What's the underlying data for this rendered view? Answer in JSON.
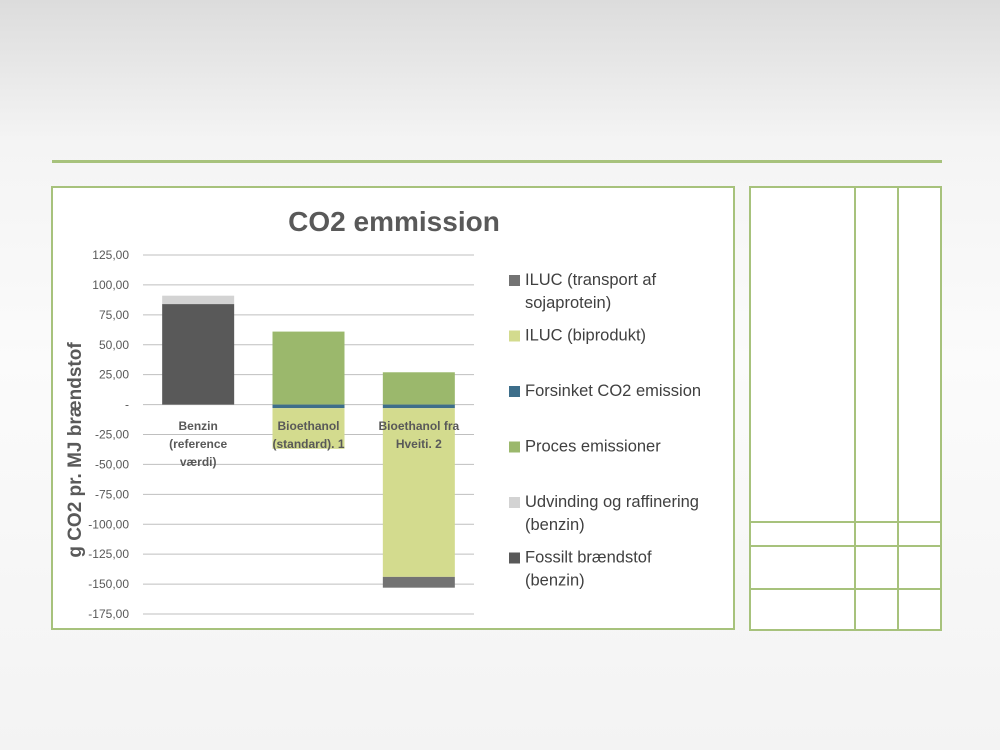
{
  "chart_data": {
    "type": "bar",
    "stacked": true,
    "title": "CO2 emmission",
    "ylabel": "g CO2 pr. MJ brændstof",
    "xlabel": "",
    "categories": [
      "Benzin (reference værdi)",
      "Bioethanol (standard). 1",
      "Bioethanol fra Hveiti. 2"
    ],
    "category_label_lines": [
      [
        "Benzin",
        "(reference",
        "værdi)"
      ],
      [
        "Bioethanol",
        "(standard). 1"
      ],
      [
        "Bioethanol fra",
        "Hveiti. 2"
      ]
    ],
    "ylim": [
      -175,
      125
    ],
    "ytick_values": [
      125,
      100,
      75,
      50,
      25,
      0,
      -25,
      -50,
      -75,
      -100,
      -125,
      -150,
      -175
    ],
    "ytick_labels": [
      "125,00",
      "100,00",
      "75,00",
      "50,00",
      "25,00",
      "-",
      "-25,00",
      "-50,00",
      "-75,00",
      "-100,00",
      "-125,00",
      "-150,00",
      "-175,00"
    ],
    "grid": true,
    "legend_position": "right",
    "series": [
      {
        "name": "ILUC (transport af sojaprotein)",
        "legend_lines": [
          "ILUC (transport af",
          "sojaprotein)"
        ],
        "color": "#737373",
        "values": [
          0,
          0,
          -9
        ]
      },
      {
        "name": "ILUC (biprodukt)",
        "legend_lines": [
          "ILUC (biprodukt)"
        ],
        "color": "#d3db8e",
        "values": [
          0,
          -34,
          -141
        ]
      },
      {
        "name": "Forsinket CO2 emission",
        "legend_lines": [
          "Forsinket CO2 emission"
        ],
        "color": "#3d6e8a",
        "values": [
          0,
          -3,
          -3
        ]
      },
      {
        "name": "Proces emissioner",
        "legend_lines": [
          "Proces emissioner"
        ],
        "color": "#9bb86c",
        "values": [
          0,
          61,
          27
        ]
      },
      {
        "name": "Udvinding og raffinering (benzin)",
        "legend_lines": [
          "Udvinding og raffinering",
          "(benzin)"
        ],
        "color": "#d3d3d3",
        "values": [
          7,
          0,
          0
        ]
      },
      {
        "name": "Fossilt brændstof (benzin)",
        "legend_lines": [
          "Fossilt brændstof",
          "(benzin)"
        ],
        "color": "#595959",
        "values": [
          84,
          0,
          0
        ]
      }
    ],
    "stack_order": [
      "Fossilt brændstof (benzin)",
      "Udvinding og raffinering (benzin)",
      "Proces emissioner",
      "Forsinket CO2 emission",
      "ILUC (biprodukt)",
      "ILUC (transport af sojaprotein)"
    ]
  }
}
